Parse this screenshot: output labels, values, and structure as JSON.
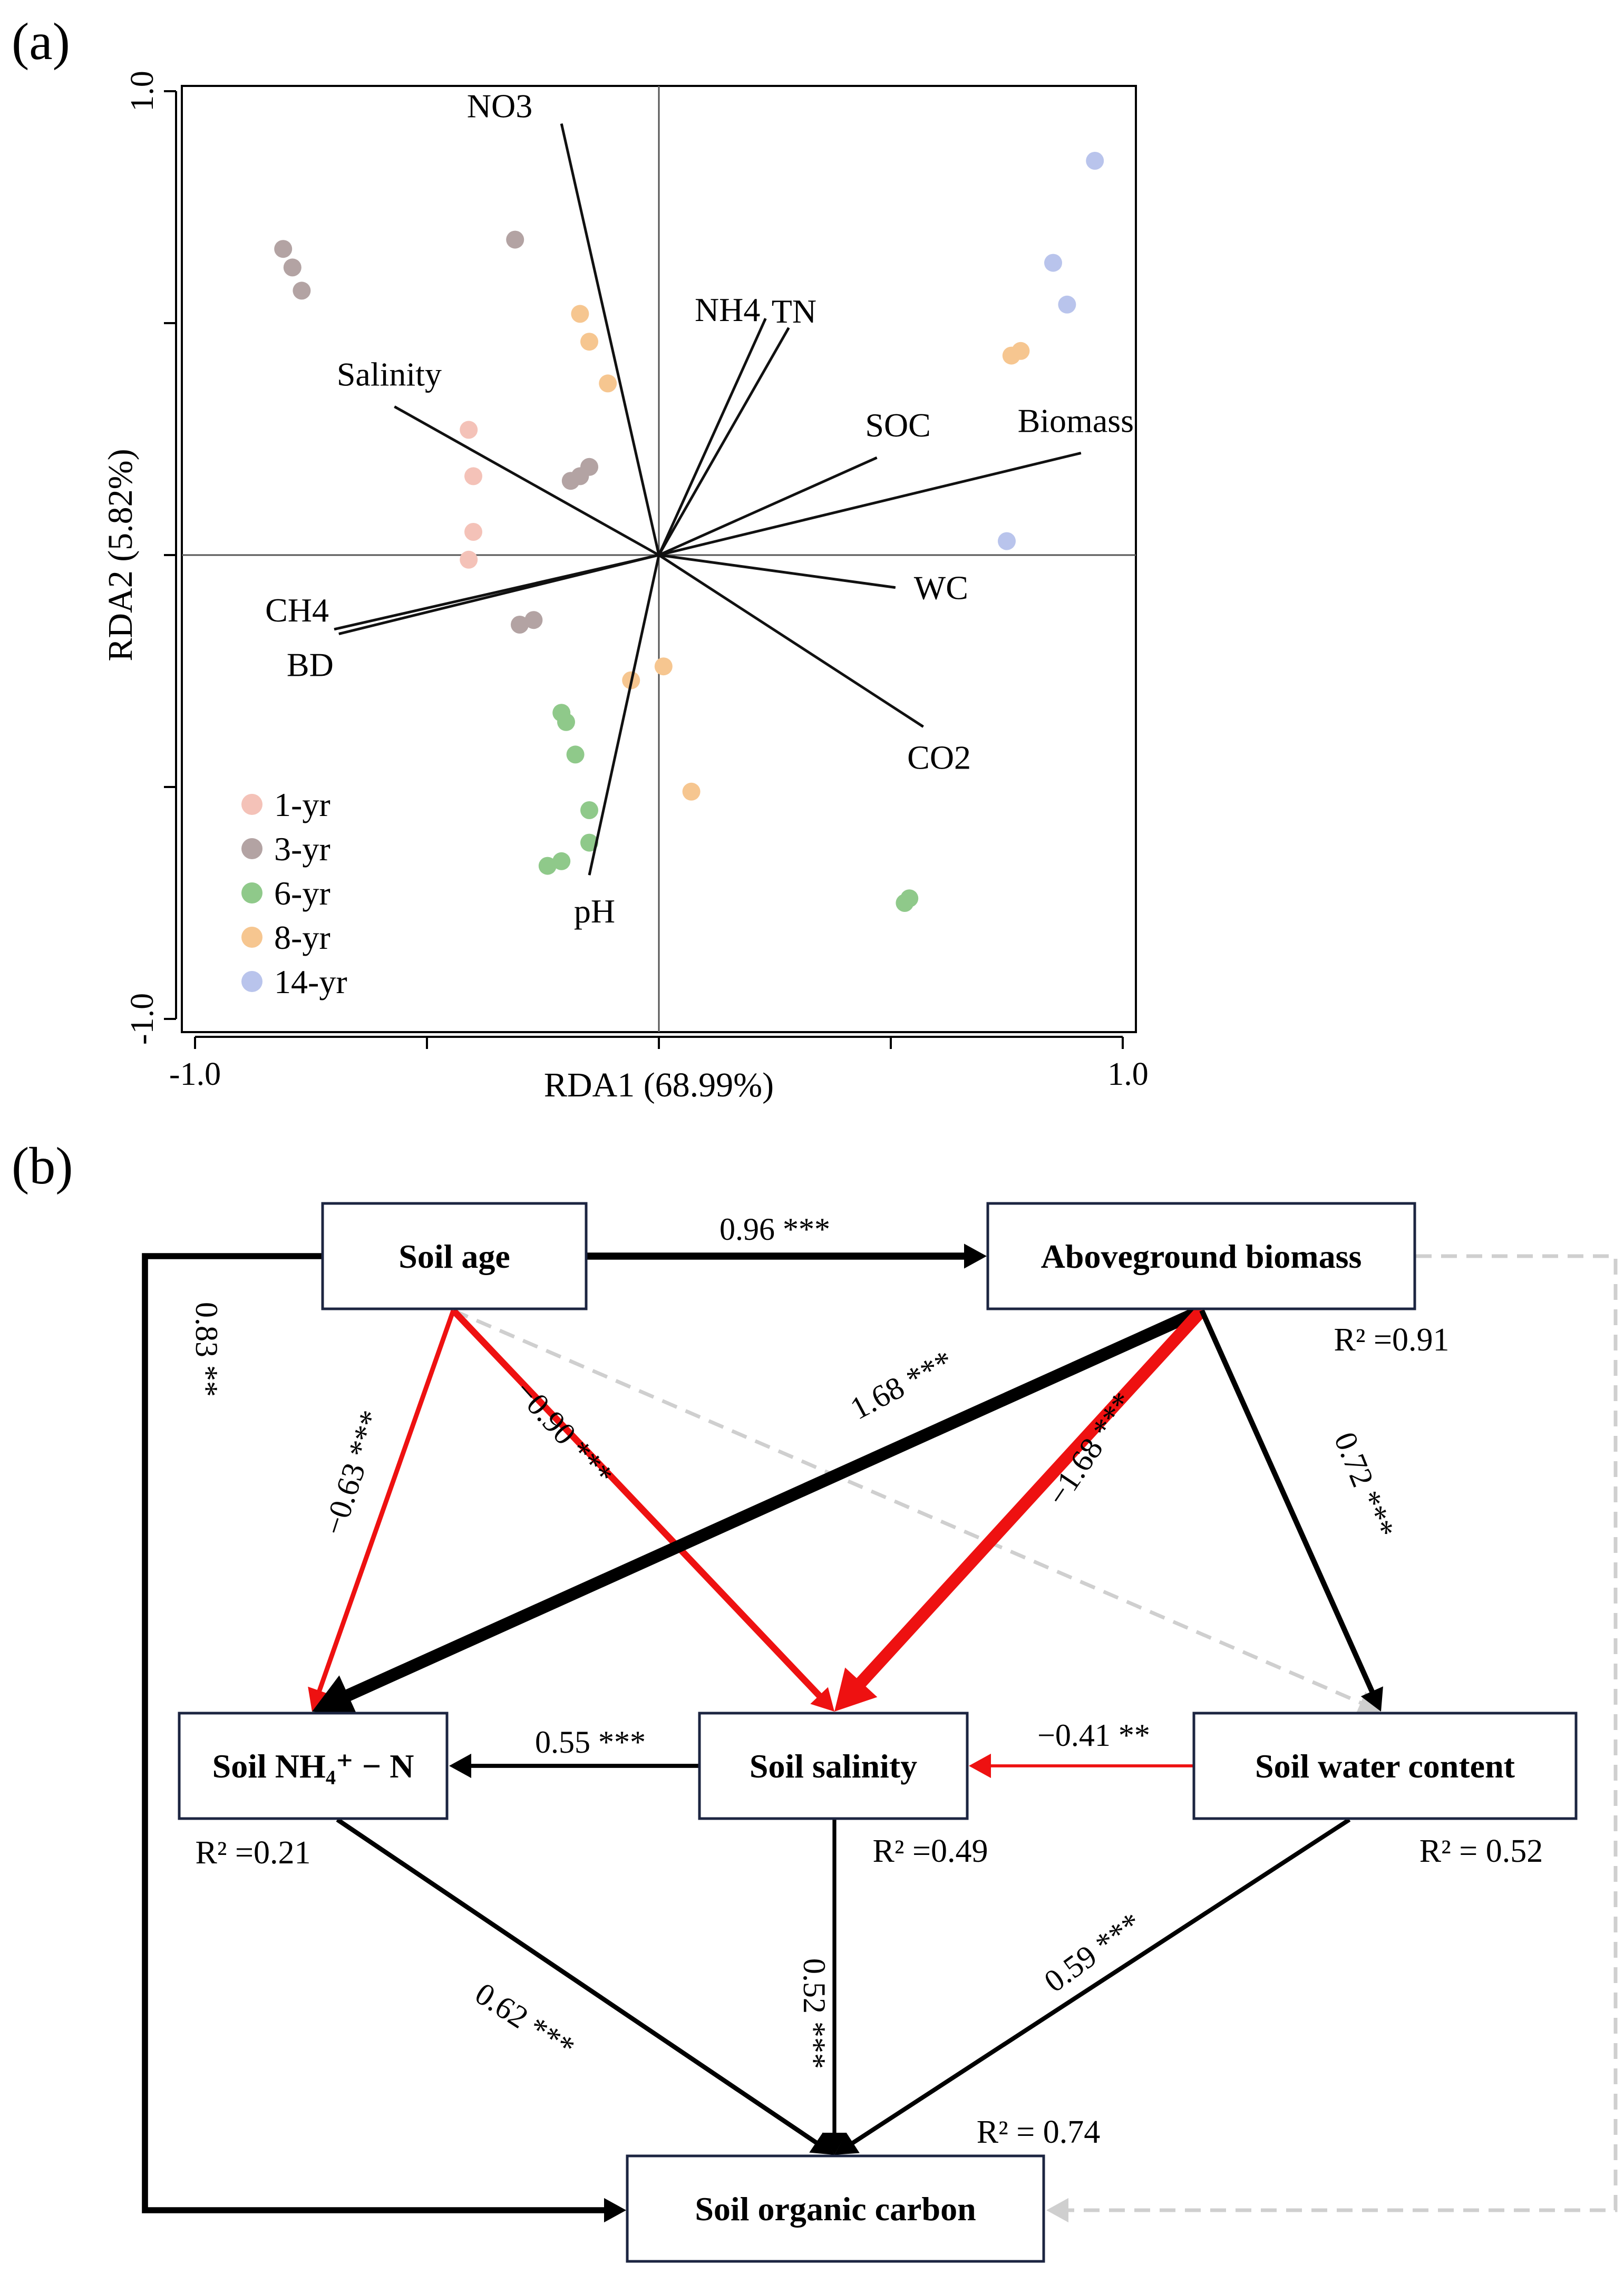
{
  "panels": {
    "a_label": "(a)",
    "b_label": "(b)"
  },
  "chart_data": [
    {
      "type": "scatter",
      "subtype": "rda_biplot",
      "xlabel": "RDA1 (68.99%)",
      "ylabel": "RDA2 (5.82%)",
      "xlim": [
        -1.0,
        1.0
      ],
      "ylim": [
        -1.0,
        1.0
      ],
      "xtick_labels": [
        "-1.0",
        "1.0"
      ],
      "ytick_labels": [
        "-1.0",
        "1.0"
      ],
      "legend_position": "bottom-left",
      "groups": [
        {
          "name": "1-yr",
          "color": "#f4c2b8",
          "points": [
            [
              -0.41,
              0.27
            ],
            [
              -0.4,
              0.17
            ],
            [
              -0.4,
              0.05
            ],
            [
              -0.41,
              -0.01
            ]
          ]
        },
        {
          "name": "3-yr",
          "color": "#b3a3a3",
          "points": [
            [
              -0.81,
              0.66
            ],
            [
              -0.79,
              0.62
            ],
            [
              -0.77,
              0.57
            ],
            [
              -0.31,
              0.68
            ],
            [
              -0.19,
              0.16
            ],
            [
              -0.17,
              0.17
            ],
            [
              -0.15,
              0.19
            ],
            [
              -0.3,
              -0.15
            ],
            [
              -0.27,
              -0.14
            ]
          ]
        },
        {
          "name": "6-yr",
          "color": "#8fc98a",
          "points": [
            [
              -0.21,
              -0.34
            ],
            [
              -0.2,
              -0.36
            ],
            [
              -0.18,
              -0.43
            ],
            [
              -0.15,
              -0.55
            ],
            [
              -0.15,
              -0.62
            ],
            [
              -0.21,
              -0.66
            ],
            [
              -0.24,
              -0.67
            ],
            [
              0.53,
              -0.75
            ],
            [
              0.54,
              -0.74
            ]
          ]
        },
        {
          "name": "8-yr",
          "color": "#f6c690",
          "points": [
            [
              -0.17,
              0.52
            ],
            [
              -0.15,
              0.46
            ],
            [
              -0.11,
              0.37
            ],
            [
              -0.06,
              -0.27
            ],
            [
              0.01,
              -0.24
            ],
            [
              0.07,
              -0.51
            ],
            [
              0.76,
              0.43
            ],
            [
              0.78,
              0.44
            ]
          ]
        },
        {
          "name": "14-yr",
          "color": "#b9c4ec",
          "points": [
            [
              0.94,
              0.85
            ],
            [
              0.85,
              0.63
            ],
            [
              0.88,
              0.54
            ],
            [
              0.75,
              0.03
            ]
          ]
        }
      ],
      "arrows": [
        {
          "name": "NO3",
          "x": -0.21,
          "y": 0.93
        },
        {
          "name": "NH4",
          "x": 0.23,
          "y": 0.51
        },
        {
          "name": "TN",
          "x": 0.28,
          "y": 0.49
        },
        {
          "name": "Salinity",
          "x": -0.57,
          "y": 0.32
        },
        {
          "name": "SOC",
          "x": 0.47,
          "y": 0.21
        },
        {
          "name": "Biomass",
          "x": 0.91,
          "y": 0.22
        },
        {
          "name": "WC",
          "x": 0.51,
          "y": -0.07
        },
        {
          "name": "CH4",
          "x": -0.7,
          "y": -0.16
        },
        {
          "name": "BD",
          "x": -0.69,
          "y": -0.17
        },
        {
          "name": "CO2",
          "x": 0.57,
          "y": -0.37
        },
        {
          "name": "pH",
          "x": -0.15,
          "y": -0.69
        }
      ]
    },
    {
      "type": "diagram",
      "subtype": "structural_equation_model",
      "nodes": [
        {
          "id": "age",
          "label": "Soil age"
        },
        {
          "id": "biomass",
          "label": "Aboveground biomass",
          "r2": "R² =0.91"
        },
        {
          "id": "nh4",
          "label": "Soil NH₄⁺ − N",
          "r2": "R² =0.21"
        },
        {
          "id": "salinity",
          "label": "Soil salinity",
          "r2": "R² =0.49"
        },
        {
          "id": "water",
          "label": "Soil water content",
          "r2": "R² = 0.52"
        },
        {
          "id": "soc",
          "label": "Soil organic carbon",
          "r2": "R² = 0.74"
        }
      ],
      "paths": [
        {
          "from": "age",
          "to": "biomass",
          "label": "0.96 ***",
          "coef": 0.96,
          "sign": "positive"
        },
        {
          "from": "age",
          "to": "soc",
          "label": "0.83 **",
          "coef": 0.83,
          "sign": "positive"
        },
        {
          "from": "age",
          "to": "nh4",
          "label": "−0.63 ***",
          "coef": -0.63,
          "sign": "negative"
        },
        {
          "from": "age",
          "to": "salinity",
          "label": "−0.90 ***",
          "coef": -0.9,
          "sign": "negative"
        },
        {
          "from": "age",
          "to": "water",
          "label": "",
          "coef": null,
          "sign": "nonsignificant"
        },
        {
          "from": "biomass",
          "to": "nh4",
          "label": "1.68 ***",
          "coef": 1.68,
          "sign": "positive"
        },
        {
          "from": "biomass",
          "to": "salinity",
          "label": "−1.68 ***",
          "coef": -1.68,
          "sign": "negative"
        },
        {
          "from": "biomass",
          "to": "water",
          "label": "0.72 ***",
          "coef": 0.72,
          "sign": "positive"
        },
        {
          "from": "biomass",
          "to": "soc",
          "label": "",
          "coef": null,
          "sign": "nonsignificant"
        },
        {
          "from": "salinity",
          "to": "nh4",
          "label": "0.55 ***",
          "coef": 0.55,
          "sign": "positive"
        },
        {
          "from": "water",
          "to": "salinity",
          "label": "−0.41 **",
          "coef": -0.41,
          "sign": "negative"
        },
        {
          "from": "nh4",
          "to": "soc",
          "label": "0.62 ***",
          "coef": 0.62,
          "sign": "positive"
        },
        {
          "from": "salinity",
          "to": "soc",
          "label": "0.52 ***",
          "coef": 0.52,
          "sign": "positive"
        },
        {
          "from": "water",
          "to": "soc",
          "label": "0.59 ***",
          "coef": 0.59,
          "sign": "positive"
        }
      ],
      "colors": {
        "positive": "#000000",
        "negative": "#ee1111",
        "nonsignificant": "#cfcfcf"
      }
    }
  ]
}
